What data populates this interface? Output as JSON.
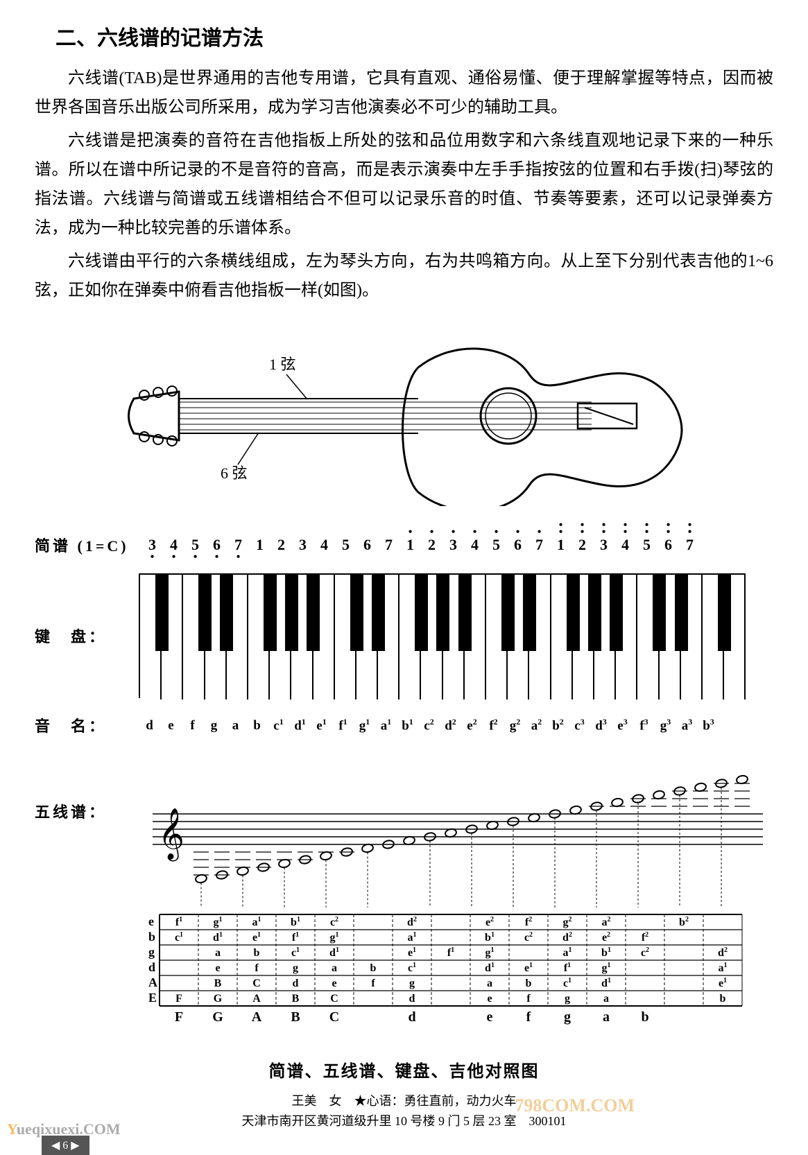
{
  "heading": "二、六线谱的记谱方法",
  "paragraphs": [
    "六线谱(TAB)是世界通用的吉他专用谱，它具有直观、通俗易懂、便于理解掌握等特点，因而被世界各国音乐出版公司所采用，成为学习吉他演奏必不可少的辅助工具。",
    "六线谱是把演奏的音符在吉他指板上所处的弦和品位用数字和六条线直观地记录下来的一种乐谱。所以在谱中所记录的不是音符的音高，而是表示演奏中左手手指按弦的位置和右手拨(扫)琴弦的指法谱。六线谱与简谱或五线谱相结合不但可以记录乐音的时值、节奏等要素，还可以记录弹奏方法，成为一种比较完善的乐谱体系。",
    "六线谱由平行的六条横线组成，左为琴头方向，右为共鸣箱方向。从上至下分别代表吉他的1~6弦，正如你在弹奏中俯看吉他指板一样(如图)。"
  ],
  "guitar": {
    "label_top": "1 弦",
    "label_bottom": "6 弦"
  },
  "labels": {
    "jianpu": "简谱 (1=C)",
    "keyboard": "键　盘：",
    "notename": "音　名：",
    "staff": "五线谱："
  },
  "jianpu": {
    "notes": [
      {
        "n": "3",
        "d": -1
      },
      {
        "n": "4",
        "d": -1
      },
      {
        "n": "5",
        "d": -1
      },
      {
        "n": "6",
        "d": -1
      },
      {
        "n": "7",
        "d": -1
      },
      {
        "n": "1",
        "d": 0
      },
      {
        "n": "2",
        "d": 0
      },
      {
        "n": "3",
        "d": 0
      },
      {
        "n": "4",
        "d": 0
      },
      {
        "n": "5",
        "d": 0
      },
      {
        "n": "6",
        "d": 0
      },
      {
        "n": "7",
        "d": 0
      },
      {
        "n": "1",
        "d": 1
      },
      {
        "n": "2",
        "d": 1
      },
      {
        "n": "3",
        "d": 1
      },
      {
        "n": "4",
        "d": 1
      },
      {
        "n": "5",
        "d": 1
      },
      {
        "n": "6",
        "d": 1
      },
      {
        "n": "7",
        "d": 1
      },
      {
        "n": "1",
        "d": 2
      },
      {
        "n": "2",
        "d": 2
      },
      {
        "n": "3",
        "d": 2
      },
      {
        "n": "4",
        "d": 2
      },
      {
        "n": "5",
        "d": 2
      },
      {
        "n": "6",
        "d": 2
      },
      {
        "n": "7",
        "d": 2
      }
    ]
  },
  "keyboard": {
    "white_count": 28,
    "black_pattern": [
      0,
      2,
      3,
      5,
      6,
      7,
      9,
      10,
      12,
      13,
      14,
      16,
      17,
      19,
      20,
      21,
      23,
      24,
      26
    ],
    "comment": "black_pattern lists white-key indices after which a black key sits (between that white key and the next)"
  },
  "note_names": [
    "d",
    "e",
    "f",
    "g",
    "a",
    "b",
    "c¹",
    "d¹",
    "e¹",
    "f¹",
    "g¹",
    "a¹",
    "b¹",
    "c²",
    "d²",
    "e²",
    "f²",
    "g²",
    "a²",
    "b²",
    "c³",
    "d³",
    "e³",
    "f³",
    "g³",
    "a³",
    "b³"
  ],
  "staff": {
    "lines": 5,
    "ledger_below": 5,
    "ledger_above": 6,
    "note_count": 27,
    "start_step": -9,
    "note_type": "whole"
  },
  "tab_grid": {
    "string_labels": [
      "e",
      "b",
      "g",
      "d",
      "A",
      "E"
    ],
    "columns": 15,
    "frets_shown": [
      "F",
      "G",
      "A",
      "B",
      "C",
      "d",
      "e",
      "f",
      "g",
      "a",
      "b"
    ]
  },
  "caption": "简谱、五线谱、键盘、吉他对照图",
  "footer": {
    "line1": "王美　女　★心语：勇往直前，动力火车",
    "line2": "天津市南开区黄河道级升里 10 号楼 9 门 5 层 23 室　300101"
  },
  "watermarks": {
    "left_y": "Y",
    "left_rest": "ueqixuexi.COM",
    "right": "798COM.COM"
  },
  "colors": {
    "text": "#000000",
    "bg": "#ffffff",
    "wm_orange": "#e8a84a",
    "wm_gray": "#888888"
  }
}
